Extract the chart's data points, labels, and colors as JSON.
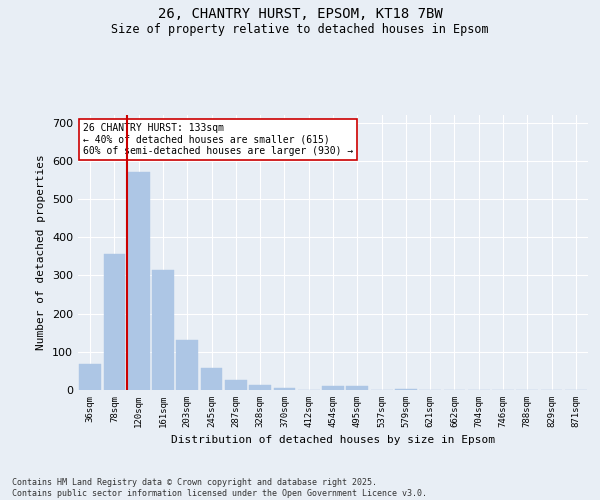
{
  "title1": "26, CHANTRY HURST, EPSOM, KT18 7BW",
  "title2": "Size of property relative to detached houses in Epsom",
  "xlabel": "Distribution of detached houses by size in Epsom",
  "ylabel": "Number of detached properties",
  "categories": [
    "36sqm",
    "78sqm",
    "120sqm",
    "161sqm",
    "203sqm",
    "245sqm",
    "287sqm",
    "328sqm",
    "370sqm",
    "412sqm",
    "454sqm",
    "495sqm",
    "537sqm",
    "579sqm",
    "621sqm",
    "662sqm",
    "704sqm",
    "746sqm",
    "788sqm",
    "829sqm",
    "871sqm"
  ],
  "values": [
    68,
    357,
    572,
    315,
    132,
    57,
    27,
    14,
    6,
    0,
    10,
    10,
    0,
    3,
    0,
    0,
    0,
    0,
    0,
    0,
    0
  ],
  "bar_color": "#adc6e5",
  "vline_color": "#cc0000",
  "vline_index": 2,
  "annotation_text": "26 CHANTRY HURST: 133sqm\n← 40% of detached houses are smaller (615)\n60% of semi-detached houses are larger (930) →",
  "annotation_box_color": "#ffffff",
  "annotation_box_edge": "#cc0000",
  "ylim": [
    0,
    720
  ],
  "yticks": [
    0,
    100,
    200,
    300,
    400,
    500,
    600,
    700
  ],
  "background_color": "#e8eef5",
  "grid_color": "#ffffff",
  "footer1": "Contains HM Land Registry data © Crown copyright and database right 2025.",
  "footer2": "Contains public sector information licensed under the Open Government Licence v3.0."
}
